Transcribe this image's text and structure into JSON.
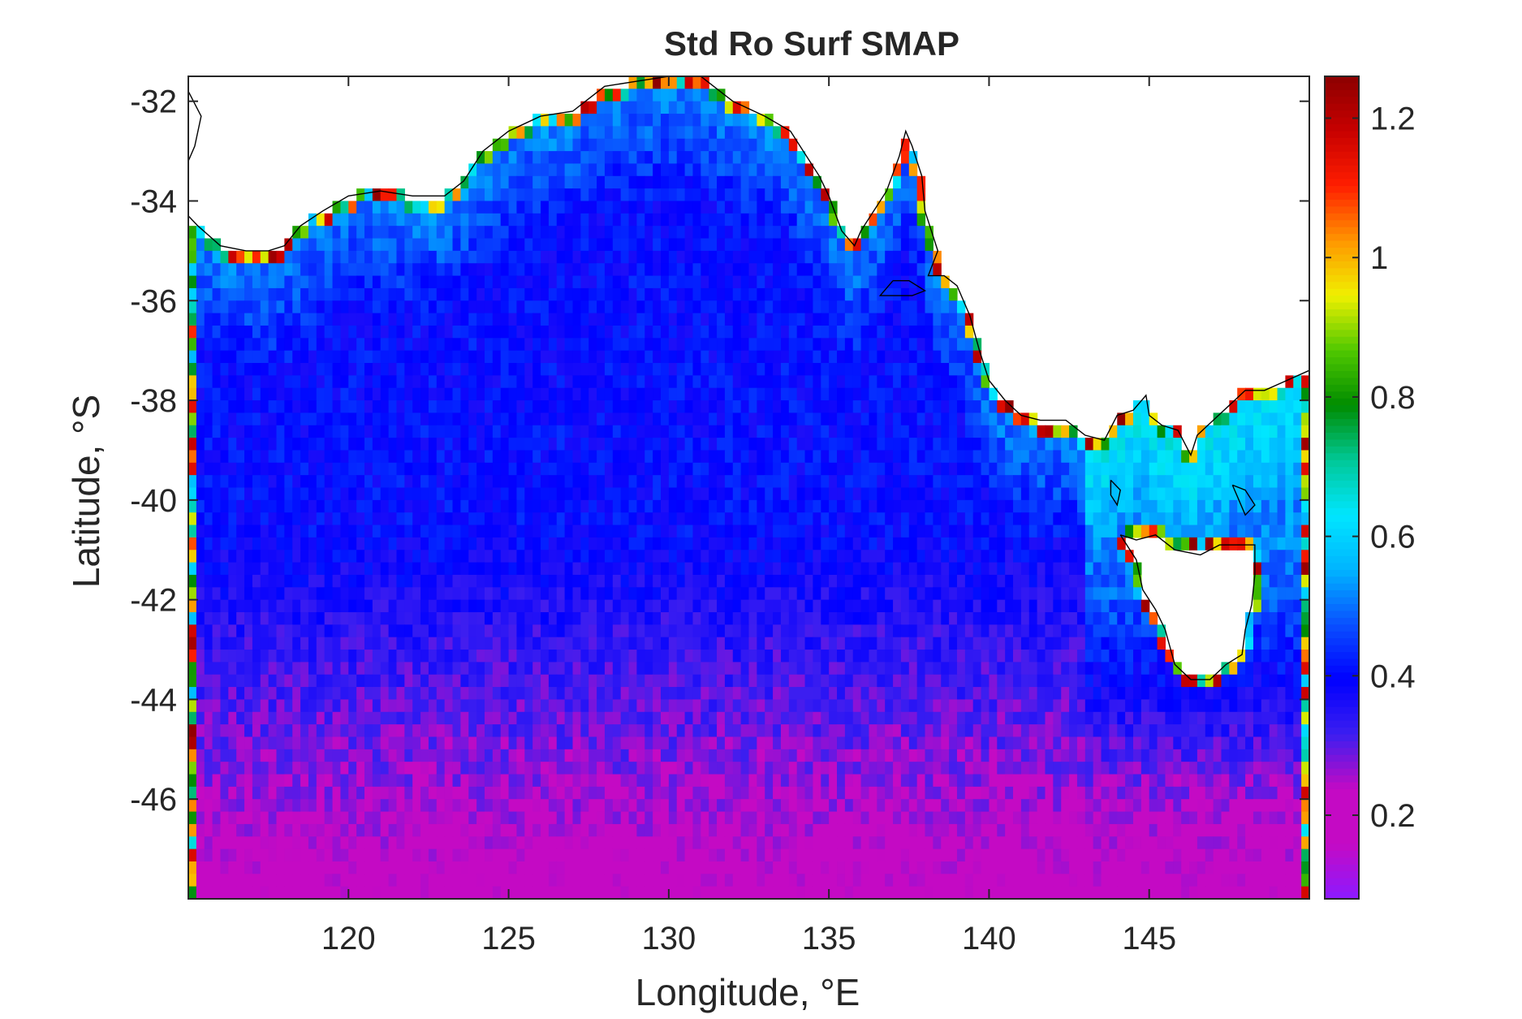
{
  "chart_data": {
    "type": "heatmap",
    "title": "Std Ro Surf SMAP",
    "xlabel": "Longitude, °E",
    "ylabel": "Latitude, °S",
    "xlim": [
      115.0,
      150.0
    ],
    "ylim": [
      -48.0,
      -31.5
    ],
    "xticks": [
      120,
      125,
      130,
      135,
      140,
      145
    ],
    "xticklabels": [
      "120",
      "125",
      "130",
      "135",
      "140",
      "145"
    ],
    "yticks": [
      -32,
      -34,
      -36,
      -38,
      -40,
      -42,
      -44,
      -46
    ],
    "yticklabels": [
      "-32",
      "-34",
      "-36",
      "-38",
      "-40",
      "-42",
      "-44",
      "-46"
    ],
    "grid": false,
    "colorbar": {
      "clim": [
        0.08,
        1.26
      ],
      "ticks": [
        0.2,
        0.4,
        0.6,
        0.8,
        1.0,
        1.2
      ],
      "ticklabels": [
        "0.2",
        "0.4",
        "0.6",
        "0.8",
        "1",
        "1.2"
      ],
      "colormap": [
        "#8c1aff",
        "#c40ac4",
        "#c40ac4",
        "#3c1ef0",
        "#0000ff",
        "#0a50ff",
        "#00b4ff",
        "#00e6ff",
        "#00c896",
        "#008c00",
        "#50c800",
        "#f0f000",
        "#ff9600",
        "#ff1e00",
        "#c80000",
        "#8c0000"
      ]
    },
    "field_description_values": {
      "resolution_deg": 0.25,
      "open_ocean_south": 0.2,
      "central_interior": 0.4,
      "shelf_and_gulf_edges": 0.55,
      "coastline_max": 1.26
    },
    "coastline": [
      [
        [
          115.0,
          -34.3
        ],
        [
          115.3,
          -34.5
        ],
        [
          116.0,
          -34.9
        ],
        [
          116.8,
          -35.0
        ],
        [
          117.5,
          -35.0
        ],
        [
          118.0,
          -34.9
        ],
        [
          118.5,
          -34.5
        ],
        [
          119.2,
          -34.2
        ],
        [
          120.0,
          -33.9
        ],
        [
          121.0,
          -33.8
        ],
        [
          122.0,
          -33.9
        ],
        [
          123.0,
          -33.9
        ],
        [
          123.6,
          -33.6
        ],
        [
          124.2,
          -33.0
        ],
        [
          125.0,
          -32.6
        ],
        [
          126.0,
          -32.3
        ],
        [
          127.0,
          -32.2
        ],
        [
          128.0,
          -31.7
        ],
        [
          129.0,
          -31.6
        ],
        [
          130.0,
          -31.5
        ],
        [
          131.0,
          -31.5
        ],
        [
          132.0,
          -32.0
        ],
        [
          133.0,
          -32.3
        ],
        [
          133.8,
          -32.6
        ],
        [
          134.3,
          -33.1
        ],
        [
          134.7,
          -33.5
        ],
        [
          135.0,
          -33.9
        ],
        [
          135.4,
          -34.6
        ],
        [
          135.8,
          -34.9
        ],
        [
          136.0,
          -34.6
        ],
        [
          136.4,
          -34.2
        ],
        [
          136.8,
          -33.8
        ],
        [
          137.2,
          -33.1
        ],
        [
          137.4,
          -32.6
        ],
        [
          137.6,
          -32.9
        ],
        [
          137.9,
          -33.5
        ],
        [
          138.0,
          -34.2
        ],
        [
          138.2,
          -34.6
        ],
        [
          138.4,
          -35.0
        ],
        [
          138.1,
          -35.5
        ],
        [
          138.6,
          -35.5
        ],
        [
          139.0,
          -35.7
        ],
        [
          139.4,
          -36.3
        ],
        [
          139.7,
          -37.0
        ],
        [
          140.0,
          -37.6
        ],
        [
          140.5,
          -38.0
        ],
        [
          141.0,
          -38.3
        ],
        [
          141.6,
          -38.4
        ],
        [
          142.4,
          -38.4
        ],
        [
          143.0,
          -38.7
        ],
        [
          143.6,
          -38.8
        ],
        [
          144.0,
          -38.3
        ],
        [
          144.5,
          -38.2
        ],
        [
          144.9,
          -37.9
        ],
        [
          145.0,
          -38.3
        ],
        [
          145.4,
          -38.5
        ],
        [
          145.9,
          -38.6
        ],
        [
          146.3,
          -39.1
        ],
        [
          146.5,
          -38.7
        ],
        [
          147.0,
          -38.4
        ],
        [
          147.5,
          -38.1
        ],
        [
          148.0,
          -37.8
        ],
        [
          148.6,
          -37.8
        ],
        [
          149.3,
          -37.6
        ],
        [
          150.0,
          -37.4
        ]
      ],
      [
        [
          144.1,
          -40.7
        ],
        [
          144.6,
          -40.8
        ],
        [
          145.2,
          -40.7
        ],
        [
          145.8,
          -41.0
        ],
        [
          146.6,
          -41.1
        ],
        [
          147.2,
          -40.9
        ],
        [
          147.8,
          -40.9
        ],
        [
          148.3,
          -40.9
        ],
        [
          148.3,
          -41.5
        ],
        [
          148.2,
          -42.1
        ],
        [
          148.0,
          -42.6
        ],
        [
          147.9,
          -43.1
        ],
        [
          147.4,
          -43.3
        ],
        [
          146.9,
          -43.6
        ],
        [
          146.3,
          -43.6
        ],
        [
          145.8,
          -43.3
        ],
        [
          145.5,
          -42.6
        ],
        [
          145.2,
          -42.2
        ],
        [
          144.8,
          -41.8
        ],
        [
          144.6,
          -41.2
        ],
        [
          144.1,
          -40.7
        ]
      ],
      [
        [
          137.0,
          -35.6
        ],
        [
          137.5,
          -35.6
        ],
        [
          138.0,
          -35.8
        ],
        [
          137.6,
          -35.9
        ],
        [
          137.0,
          -35.9
        ],
        [
          136.6,
          -35.9
        ],
        [
          137.0,
          -35.6
        ]
      ],
      [
        [
          147.6,
          -39.7
        ],
        [
          148.0,
          -39.8
        ],
        [
          148.3,
          -40.1
        ],
        [
          148.0,
          -40.3
        ],
        [
          147.8,
          -40.0
        ],
        [
          147.6,
          -39.7
        ]
      ],
      [
        [
          143.8,
          -39.6
        ],
        [
          144.1,
          -39.8
        ],
        [
          144.0,
          -40.1
        ],
        [
          143.8,
          -39.9
        ],
        [
          143.8,
          -39.6
        ]
      ],
      [
        [
          115.0,
          -31.8
        ],
        [
          115.4,
          -32.3
        ],
        [
          115.2,
          -32.9
        ],
        [
          115.0,
          -33.2
        ]
      ]
    ]
  }
}
